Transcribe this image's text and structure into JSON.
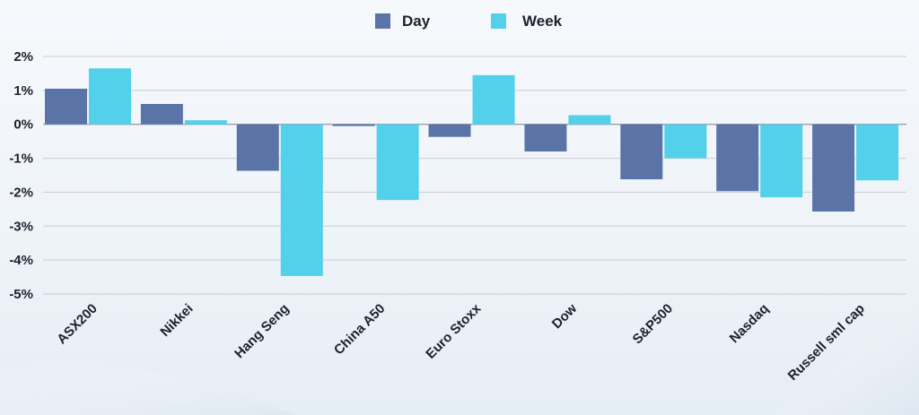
{
  "chart_data": {
    "type": "bar",
    "categories": [
      "ASX200",
      "Nikkei",
      "Hang Seng",
      "China A50",
      "Euro Stoxx",
      "Dow",
      "S&P500",
      "Nasdaq",
      "Russell sml cap"
    ],
    "series": [
      {
        "name": "Day",
        "color": "#5b74a8",
        "values": [
          1.05,
          0.6,
          -1.37,
          -0.05,
          -0.37,
          -0.8,
          -1.62,
          -1.97,
          -2.57
        ]
      },
      {
        "name": "Week",
        "color": "#53d0ea",
        "values": [
          1.65,
          0.12,
          -4.47,
          -2.23,
          1.45,
          0.27,
          -1.0,
          -2.15,
          -1.65
        ]
      }
    ],
    "yticks": [
      "2%",
      "1%",
      "0%",
      "-1%",
      "-2%",
      "-3%",
      "-4%",
      "-5%"
    ],
    "ylim": [
      -5,
      2
    ],
    "grid": true,
    "legend": "top-center",
    "colors": {
      "gridline": "#c8ccd4",
      "zero_line": "#9aa0aa",
      "text": "#1f1f2e"
    }
  }
}
